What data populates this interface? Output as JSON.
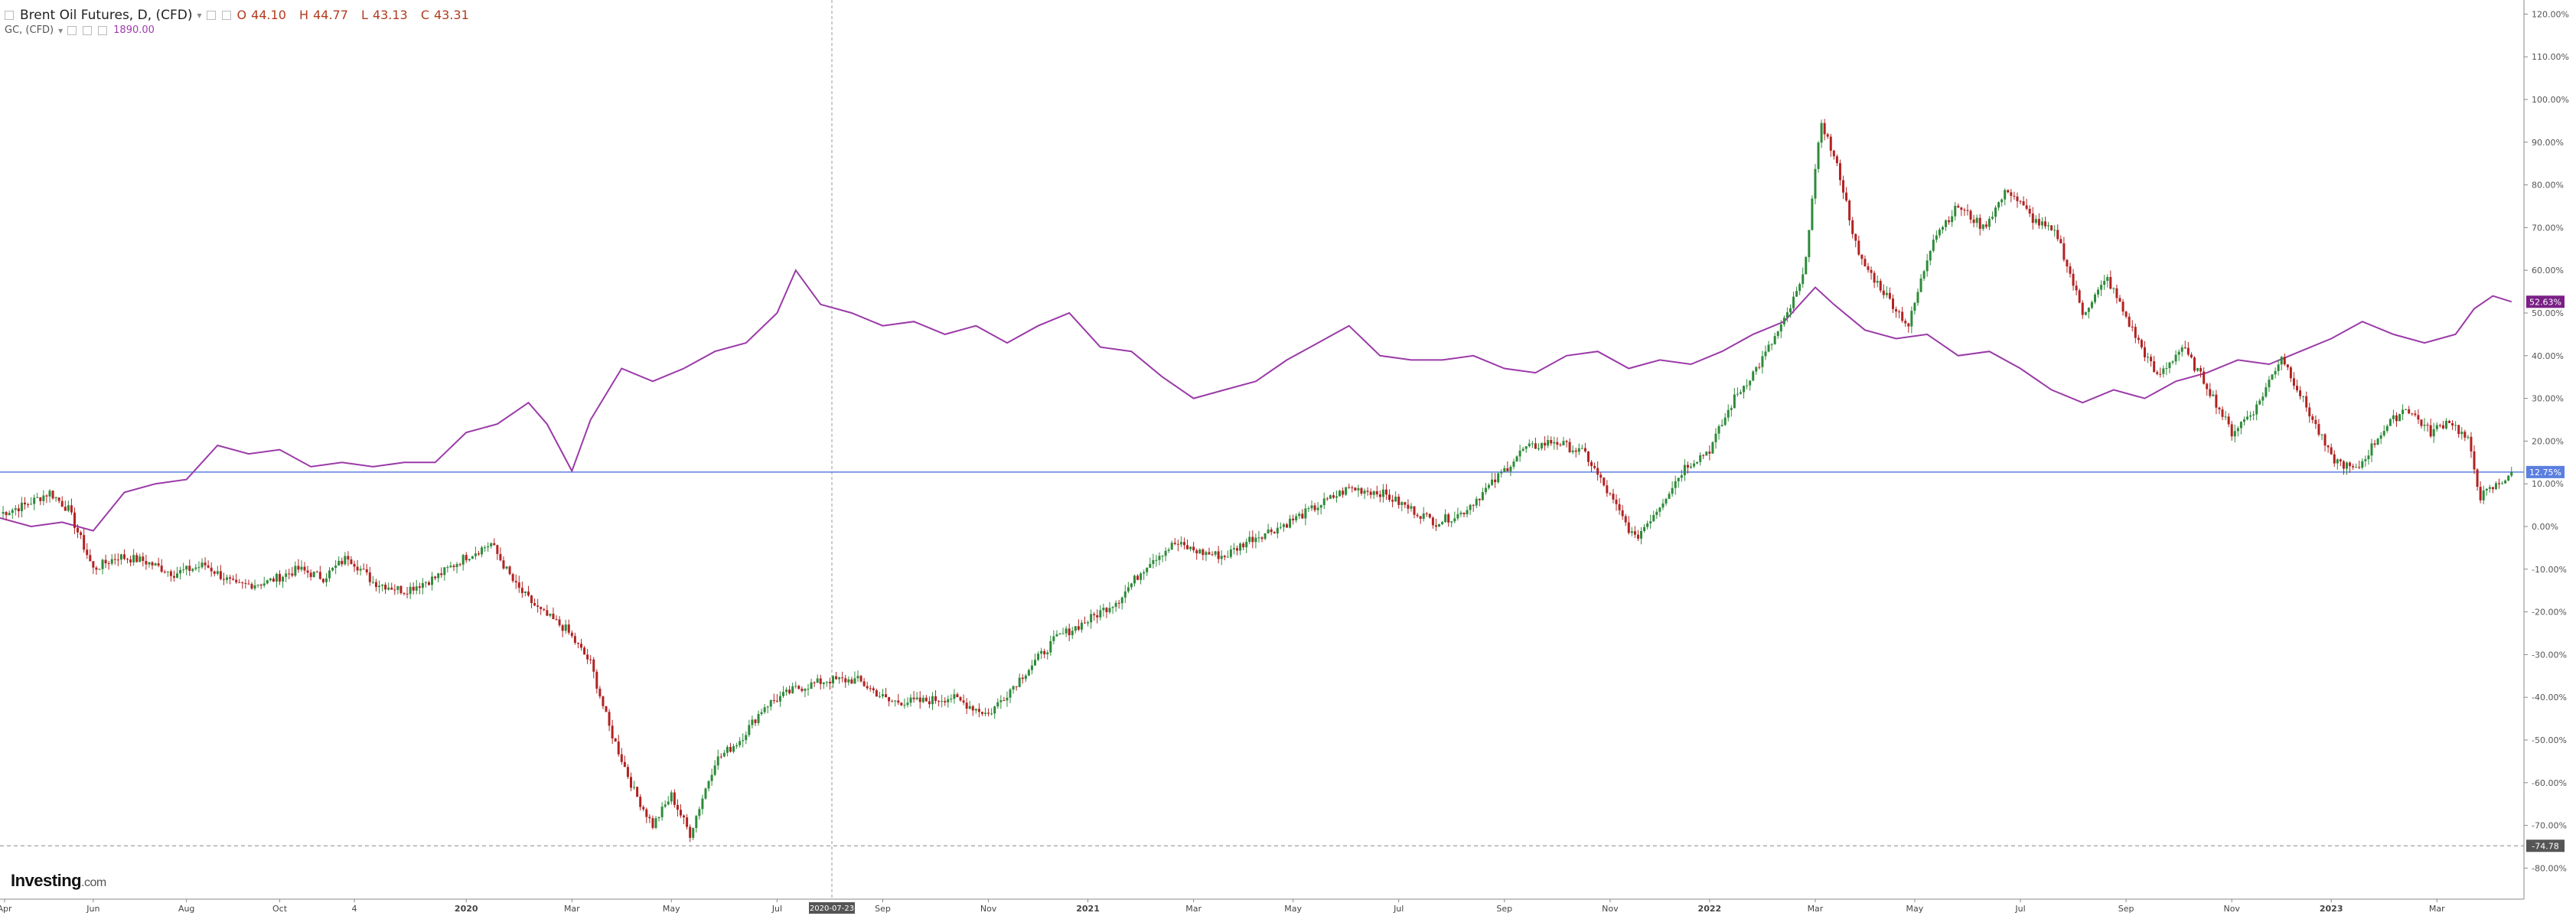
{
  "legend": {
    "symbol": "Brent Oil Futures, D, (CFD)",
    "open_label": "O",
    "open": "44.10",
    "high_label": "H",
    "high": "44.77",
    "low_label": "L",
    "low": "43.13",
    "close_label": "C",
    "close": "43.31",
    "compare_symbol": "GC, (CFD)",
    "compare_value": "1890.00"
  },
  "logo": {
    "main": "Investing",
    "suffix": ".com"
  },
  "icons": [
    "collapse-icon",
    "settings-icon",
    "close-icon",
    "chevron-down-icon"
  ],
  "colors": {
    "up": "#2e8b3a",
    "down": "#b22222",
    "gold": "#9b3aa8",
    "horizontal_line": "#5b7fe0",
    "crosshair": "#9a9a9a"
  },
  "chart_data": {
    "type": "line",
    "y_unit": "%",
    "ylim": [
      -80,
      120
    ],
    "y_ticks": [
      -80,
      -70,
      -60,
      -50,
      -40,
      -30,
      -20,
      -10,
      0,
      10,
      20,
      30,
      40,
      50,
      60,
      70,
      80,
      90,
      100,
      110,
      120
    ],
    "x_tick_labels": [
      "Apr",
      "Jun",
      "Aug",
      "Oct",
      "4",
      "2020",
      "Mar",
      "May",
      "Jul",
      "Sep",
      "Nov",
      "2021",
      "Mar",
      "May",
      "Jul",
      "Sep",
      "Nov",
      "2022",
      "Mar",
      "May",
      "Jul",
      "Sep",
      "Nov",
      "2023",
      "Mar"
    ],
    "crosshair_date_label": "2020-07-23",
    "horizontal_line_label": "12.75%",
    "horizontal_line_value": 12.75,
    "low_marker_label": "-74.78",
    "low_marker_value": -74.78,
    "gold_last_label": "52.63%",
    "grid": false,
    "series": [
      {
        "kind": "candlestick",
        "points": [
          [
            2019.25,
            3
          ],
          [
            2019.29,
            5
          ],
          [
            2019.33,
            8
          ],
          [
            2019.36,
            4
          ],
          [
            2019.4,
            -10
          ],
          [
            2019.44,
            -7
          ],
          [
            2019.48,
            -8
          ],
          [
            2019.53,
            -11
          ],
          [
            2019.58,
            -9
          ],
          [
            2019.63,
            -14
          ],
          [
            2019.68,
            -13
          ],
          [
            2019.73,
            -10
          ],
          [
            2019.77,
            -12
          ],
          [
            2019.81,
            -7
          ],
          [
            2019.85,
            -13
          ],
          [
            2019.9,
            -15
          ],
          [
            2019.95,
            -12
          ],
          [
            2020.0,
            -7
          ],
          [
            2020.04,
            -4
          ],
          [
            2020.08,
            -14
          ],
          [
            2020.12,
            -20
          ],
          [
            2020.16,
            -24
          ],
          [
            2020.2,
            -32
          ],
          [
            2020.23,
            -47
          ],
          [
            2020.27,
            -62
          ],
          [
            2020.3,
            -70
          ],
          [
            2020.33,
            -63
          ],
          [
            2020.36,
            -72
          ],
          [
            2020.4,
            -55
          ],
          [
            2020.44,
            -50
          ],
          [
            2020.48,
            -42
          ],
          [
            2020.53,
            -38
          ],
          [
            2020.58,
            -36
          ],
          [
            2020.63,
            -36
          ],
          [
            2020.68,
            -41
          ],
          [
            2020.73,
            -41
          ],
          [
            2020.78,
            -40
          ],
          [
            2020.84,
            -44
          ],
          [
            2020.9,
            -34
          ],
          [
            2020.95,
            -26
          ],
          [
            2021.0,
            -22
          ],
          [
            2021.05,
            -17
          ],
          [
            2021.1,
            -8
          ],
          [
            2021.14,
            -4
          ],
          [
            2021.18,
            -6
          ],
          [
            2021.22,
            -7
          ],
          [
            2021.26,
            -3
          ],
          [
            2021.31,
            0
          ],
          [
            2021.36,
            4
          ],
          [
            2021.42,
            9
          ],
          [
            2021.47,
            8
          ],
          [
            2021.52,
            4
          ],
          [
            2021.56,
            1
          ],
          [
            2021.6,
            3
          ],
          [
            2021.65,
            10
          ],
          [
            2021.7,
            18
          ],
          [
            2021.75,
            20
          ],
          [
            2021.8,
            17
          ],
          [
            2021.84,
            7
          ],
          [
            2021.88,
            -3
          ],
          [
            2021.92,
            5
          ],
          [
            2021.96,
            14
          ],
          [
            2022.0,
            18
          ],
          [
            2022.04,
            30
          ],
          [
            2022.08,
            38
          ],
          [
            2022.12,
            48
          ],
          [
            2022.15,
            58
          ],
          [
            2022.18,
            95
          ],
          [
            2022.21,
            82
          ],
          [
            2022.24,
            63
          ],
          [
            2022.28,
            55
          ],
          [
            2022.32,
            47
          ],
          [
            2022.36,
            68
          ],
          [
            2022.4,
            75
          ],
          [
            2022.44,
            70
          ],
          [
            2022.48,
            79
          ],
          [
            2022.52,
            72
          ],
          [
            2022.56,
            68
          ],
          [
            2022.6,
            50
          ],
          [
            2022.64,
            58
          ],
          [
            2022.68,
            46
          ],
          [
            2022.72,
            35
          ],
          [
            2022.76,
            42
          ],
          [
            2022.8,
            33
          ],
          [
            2022.84,
            22
          ],
          [
            2022.88,
            28
          ],
          [
            2022.92,
            40
          ],
          [
            2022.96,
            28
          ],
          [
            2023.0,
            16
          ],
          [
            2023.04,
            13
          ],
          [
            2023.08,
            22
          ],
          [
            2023.12,
            28
          ],
          [
            2023.16,
            22
          ],
          [
            2023.19,
            25
          ],
          [
            2023.22,
            20
          ],
          [
            2023.24,
            7
          ],
          [
            2023.27,
            10
          ],
          [
            2023.29,
            12.75
          ]
        ]
      },
      {
        "kind": "line",
        "points": [
          [
            2019.25,
            2
          ],
          [
            2019.3,
            0
          ],
          [
            2019.35,
            1
          ],
          [
            2019.4,
            -1
          ],
          [
            2019.45,
            8
          ],
          [
            2019.5,
            10
          ],
          [
            2019.55,
            11
          ],
          [
            2019.6,
            19
          ],
          [
            2019.65,
            17
          ],
          [
            2019.7,
            18
          ],
          [
            2019.75,
            14
          ],
          [
            2019.8,
            15
          ],
          [
            2019.85,
            14
          ],
          [
            2019.9,
            15
          ],
          [
            2019.95,
            15
          ],
          [
            2020.0,
            22
          ],
          [
            2020.05,
            24
          ],
          [
            2020.1,
            29
          ],
          [
            2020.13,
            24
          ],
          [
            2020.17,
            13
          ],
          [
            2020.2,
            25
          ],
          [
            2020.25,
            37
          ],
          [
            2020.3,
            34
          ],
          [
            2020.35,
            37
          ],
          [
            2020.4,
            41
          ],
          [
            2020.45,
            43
          ],
          [
            2020.5,
            50
          ],
          [
            2020.53,
            60
          ],
          [
            2020.57,
            52
          ],
          [
            2020.62,
            50
          ],
          [
            2020.67,
            47
          ],
          [
            2020.72,
            48
          ],
          [
            2020.77,
            45
          ],
          [
            2020.82,
            47
          ],
          [
            2020.87,
            43
          ],
          [
            2020.92,
            47
          ],
          [
            2020.97,
            50
          ],
          [
            2021.02,
            42
          ],
          [
            2021.07,
            41
          ],
          [
            2021.12,
            35
          ],
          [
            2021.17,
            30
          ],
          [
            2021.22,
            32
          ],
          [
            2021.27,
            34
          ],
          [
            2021.32,
            39
          ],
          [
            2021.37,
            43
          ],
          [
            2021.42,
            47
          ],
          [
            2021.47,
            40
          ],
          [
            2021.52,
            39
          ],
          [
            2021.57,
            39
          ],
          [
            2021.62,
            40
          ],
          [
            2021.67,
            37
          ],
          [
            2021.72,
            36
          ],
          [
            2021.77,
            40
          ],
          [
            2021.82,
            41
          ],
          [
            2021.87,
            37
          ],
          [
            2021.92,
            39
          ],
          [
            2021.97,
            38
          ],
          [
            2022.02,
            41
          ],
          [
            2022.07,
            45
          ],
          [
            2022.12,
            48
          ],
          [
            2022.17,
            56
          ],
          [
            2022.2,
            52
          ],
          [
            2022.25,
            46
          ],
          [
            2022.3,
            44
          ],
          [
            2022.35,
            45
          ],
          [
            2022.4,
            40
          ],
          [
            2022.45,
            41
          ],
          [
            2022.5,
            37
          ],
          [
            2022.55,
            32
          ],
          [
            2022.6,
            29
          ],
          [
            2022.65,
            32
          ],
          [
            2022.7,
            30
          ],
          [
            2022.75,
            34
          ],
          [
            2022.8,
            36
          ],
          [
            2022.85,
            39
          ],
          [
            2022.9,
            38
          ],
          [
            2022.95,
            41
          ],
          [
            2023.0,
            44
          ],
          [
            2023.05,
            48
          ],
          [
            2023.1,
            45
          ],
          [
            2023.15,
            43
          ],
          [
            2023.2,
            45
          ],
          [
            2023.23,
            51
          ],
          [
            2023.26,
            54
          ],
          [
            2023.29,
            52.63
          ]
        ]
      }
    ]
  }
}
